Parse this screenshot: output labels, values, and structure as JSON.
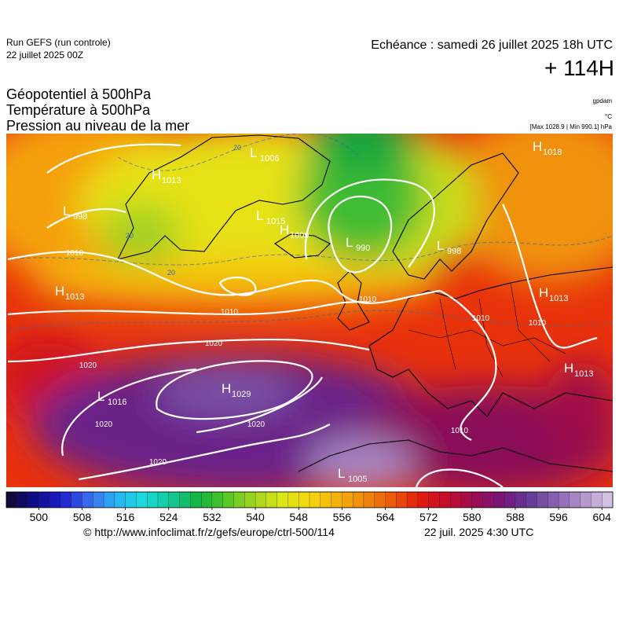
{
  "header": {
    "run": "Run GEFS (run controle)",
    "run_date": "22 juillet 2025 00Z",
    "valid": "Echéance : samedi 26 juillet 2025 18h UTC",
    "lead": "+ 114H",
    "titles": [
      "Géopotentiel à 500hPa",
      "Température à 500hPa",
      "Pression au niveau de la mer"
    ],
    "unit_geo": "gpdam",
    "unit_temp": "°C",
    "pressure_range": "[Max 1028.9 | Min 990.1] hPa"
  },
  "centers": [
    {
      "letter": "H",
      "value": 1018
    },
    {
      "letter": "H",
      "value": 1013
    },
    {
      "letter": "L",
      "value": 998
    },
    {
      "letter": "L",
      "value": 1006
    },
    {
      "letter": "L",
      "value": 1015
    },
    {
      "letter": "H",
      "value": 1009
    },
    {
      "letter": "L",
      "value": 990
    },
    {
      "letter": "L",
      "value": 998
    },
    {
      "letter": "H",
      "value": 1013
    },
    {
      "letter": "H",
      "value": 1013
    },
    {
      "letter": "H",
      "value": 1013
    },
    {
      "letter": "L",
      "value": 1016
    },
    {
      "letter": "H",
      "value": 1029
    },
    {
      "letter": "L",
      "value": 1005
    }
  ],
  "isobar_labels": [
    1010,
    1010,
    1010,
    1010,
    1010,
    1010,
    1020,
    1020,
    1020,
    1020,
    1020
  ],
  "temperature_labels": [
    20,
    20,
    20
  ],
  "colorbar": {
    "range": [
      494,
      606
    ],
    "ticks": [
      500,
      508,
      516,
      524,
      532,
      540,
      548,
      556,
      564,
      572,
      580,
      588,
      596,
      604
    ],
    "colors": [
      "#14082e",
      "#0c0c86",
      "#1e1ecc",
      "#3a6cf0",
      "#2ab4f0",
      "#18dcdc",
      "#14c896",
      "#12b43c",
      "#56c828",
      "#a4d41e",
      "#dce614",
      "#f5d810",
      "#f5b00a",
      "#f08a0a",
      "#eb580a",
      "#e41c0c",
      "#c40c2c",
      "#9c0c52",
      "#76167a",
      "#643c98",
      "#8c66b6",
      "#b498cc",
      "#dccae8"
    ]
  },
  "footer": {
    "source": "© http://www.infoclimat.fr/z/gefs/europe/ctrl-500/114",
    "issued": "22 juil. 2025  4:30 UTC"
  }
}
